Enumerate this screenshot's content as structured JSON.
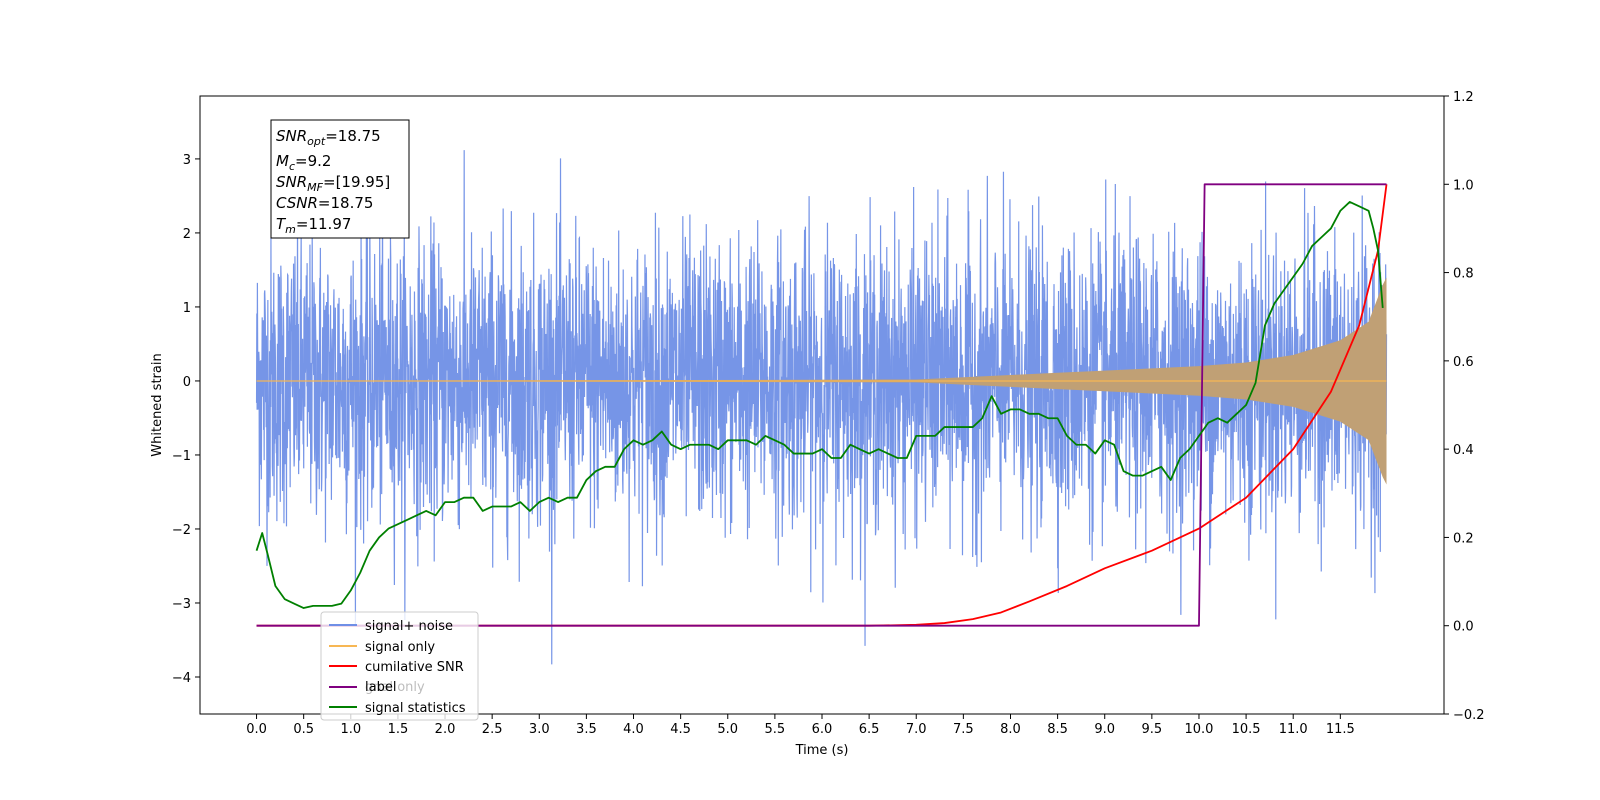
{
  "chart_data": {
    "type": "line",
    "xlabel": "Time (s)",
    "ylabel": "Whitened strain",
    "xlim": [
      -0.6,
      12.6
    ],
    "ylim": [
      -4.5,
      3.85
    ],
    "y2lim": [
      -0.2,
      1.2
    ],
    "x_ticks": [
      "0.0",
      "0.5",
      "1.0",
      "1.5",
      "2.0",
      "2.5",
      "3.0",
      "3.5",
      "4.0",
      "4.5",
      "5.0",
      "5.5",
      "6.0",
      "6.5",
      "7.0",
      "7.5",
      "8.0",
      "8.5",
      "9.0",
      "9.5",
      "10.0",
      "10.5",
      "11.0",
      "11.5"
    ],
    "y_ticks": [
      "3",
      "2",
      "1",
      "0",
      "−1",
      "−2",
      "−3",
      "−4"
    ],
    "y2_ticks": [
      "1.2",
      "1.0",
      "0.8",
      "0.6",
      "0.4",
      "0.2",
      "0.0",
      "−0.2"
    ],
    "colors": {
      "signal_noise": "#6f8fe6",
      "signal_only": "#f7b754",
      "signal_only_fill": "#c0a075",
      "cumulative_snr": "#ff0000",
      "label": "#800080",
      "signal_statistics": "#008000"
    },
    "info_box": {
      "snr_opt_main": "SNR",
      "snr_opt_sub": "opt",
      "snr_opt_value": "=18.75",
      "mc_main": "M",
      "mc_sub": "c",
      "mc_value": "=9.2",
      "snr_mf_main": "SNR",
      "snr_mf_sub": "MF",
      "snr_mf_value": "=[19.95]",
      "csnr_main": "CSNR",
      "csnr_value": "=18.75",
      "tm_main": "T",
      "tm_sub": "m",
      "tm_value": "=11.97"
    },
    "legend": {
      "position": "lower-left",
      "entries": [
        "signal+ noise",
        "signal only",
        "cumilative SNR",
        "label",
        "signal statistics"
      ],
      "overlapped_text": "gnal only"
    },
    "series": [
      {
        "name": "signal+ noise",
        "axis": "left",
        "x_range": [
          0.0,
          11.99
        ],
        "typical_range": [
          -2.0,
          2.0
        ],
        "peak_max": 3.5,
        "peak_min": -4.1
      },
      {
        "name": "signal only",
        "axis": "left",
        "x": [
          0.0,
          7.0,
          7.5,
          8.0,
          8.5,
          9.0,
          9.5,
          10.0,
          10.5,
          11.0,
          11.5,
          11.8,
          11.95,
          11.99
        ],
        "amplitude": [
          0.0,
          0.02,
          0.05,
          0.08,
          0.11,
          0.14,
          0.17,
          0.2,
          0.25,
          0.35,
          0.55,
          0.8,
          1.3,
          1.4
        ]
      },
      {
        "name": "cumilative SNR",
        "axis": "right",
        "x": [
          0.0,
          6.5,
          7.0,
          7.3,
          7.6,
          7.9,
          8.2,
          8.6,
          9.0,
          9.5,
          10.0,
          10.5,
          11.0,
          11.4,
          11.7,
          11.9,
          11.99
        ],
        "values": [
          0.0,
          0.0,
          0.002,
          0.006,
          0.015,
          0.03,
          0.055,
          0.09,
          0.13,
          0.17,
          0.22,
          0.29,
          0.4,
          0.53,
          0.68,
          0.85,
          1.0
        ]
      },
      {
        "name": "label",
        "axis": "right",
        "x": [
          0.0,
          10.0,
          10.06,
          11.99
        ],
        "values": [
          0.0,
          0.0,
          1.0,
          1.0
        ]
      },
      {
        "name": "signal statistics",
        "axis": "right",
        "x": [
          0.0,
          0.06,
          0.12,
          0.2,
          0.3,
          0.4,
          0.5,
          0.6,
          0.7,
          0.8,
          0.9,
          1.0,
          1.1,
          1.2,
          1.3,
          1.4,
          1.5,
          1.6,
          1.7,
          1.8,
          1.9,
          2.0,
          2.1,
          2.2,
          2.3,
          2.4,
          2.5,
          2.6,
          2.7,
          2.8,
          2.9,
          3.0,
          3.1,
          3.2,
          3.3,
          3.4,
          3.5,
          3.6,
          3.7,
          3.8,
          3.9,
          4.0,
          4.1,
          4.2,
          4.3,
          4.4,
          4.5,
          4.6,
          4.7,
          4.8,
          4.9,
          5.0,
          5.1,
          5.2,
          5.3,
          5.4,
          5.5,
          5.6,
          5.7,
          5.8,
          5.9,
          6.0,
          6.1,
          6.2,
          6.3,
          6.4,
          6.5,
          6.6,
          6.7,
          6.8,
          6.9,
          7.0,
          7.1,
          7.2,
          7.3,
          7.4,
          7.5,
          7.6,
          7.7,
          7.8,
          7.9,
          8.0,
          8.1,
          8.2,
          8.3,
          8.4,
          8.5,
          8.6,
          8.7,
          8.8,
          8.9,
          9.0,
          9.1,
          9.2,
          9.3,
          9.4,
          9.5,
          9.6,
          9.7,
          9.8,
          9.9,
          10.0,
          10.1,
          10.2,
          10.3,
          10.4,
          10.5,
          10.6,
          10.7,
          10.8,
          10.9,
          11.0,
          11.1,
          11.2,
          11.3,
          11.4,
          11.5,
          11.6,
          11.7,
          11.8,
          11.85,
          11.9,
          11.95
        ],
        "values": [
          0.17,
          0.21,
          0.16,
          0.09,
          0.06,
          0.05,
          0.04,
          0.045,
          0.045,
          0.045,
          0.05,
          0.08,
          0.12,
          0.17,
          0.2,
          0.22,
          0.23,
          0.24,
          0.25,
          0.26,
          0.25,
          0.28,
          0.28,
          0.29,
          0.29,
          0.26,
          0.27,
          0.27,
          0.27,
          0.28,
          0.26,
          0.28,
          0.29,
          0.28,
          0.29,
          0.29,
          0.33,
          0.35,
          0.36,
          0.36,
          0.4,
          0.42,
          0.41,
          0.42,
          0.44,
          0.41,
          0.4,
          0.41,
          0.41,
          0.41,
          0.4,
          0.42,
          0.42,
          0.42,
          0.41,
          0.43,
          0.42,
          0.41,
          0.39,
          0.39,
          0.39,
          0.4,
          0.38,
          0.38,
          0.41,
          0.4,
          0.39,
          0.4,
          0.39,
          0.38,
          0.38,
          0.43,
          0.43,
          0.43,
          0.45,
          0.45,
          0.45,
          0.45,
          0.47,
          0.52,
          0.48,
          0.49,
          0.49,
          0.48,
          0.48,
          0.47,
          0.47,
          0.43,
          0.41,
          0.41,
          0.39,
          0.42,
          0.41,
          0.35,
          0.34,
          0.34,
          0.35,
          0.36,
          0.33,
          0.38,
          0.4,
          0.43,
          0.46,
          0.47,
          0.46,
          0.48,
          0.5,
          0.55,
          0.68,
          0.73,
          0.76,
          0.79,
          0.82,
          0.86,
          0.88,
          0.9,
          0.94,
          0.96,
          0.95,
          0.94,
          0.9,
          0.85,
          0.72
        ]
      }
    ]
  }
}
